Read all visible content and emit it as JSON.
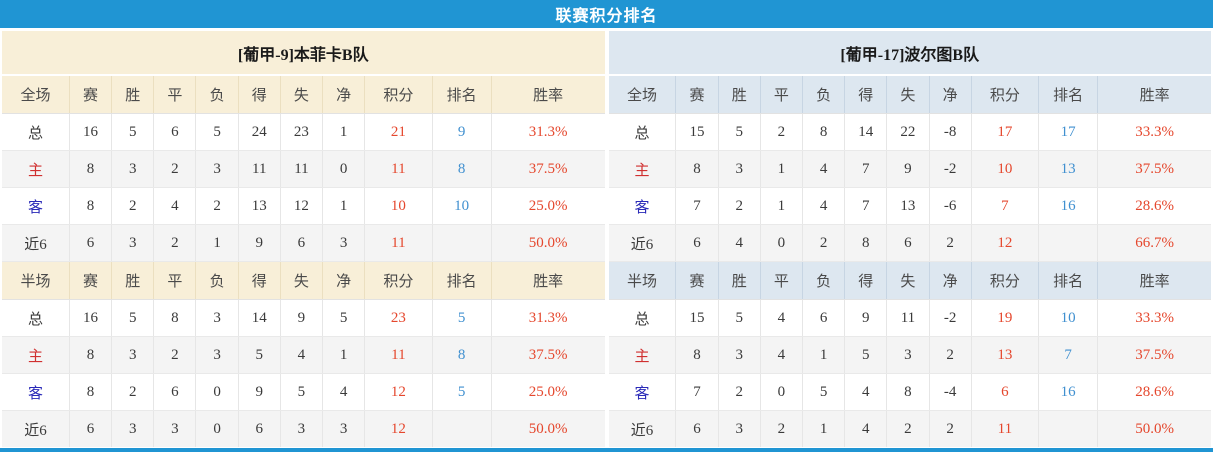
{
  "title": "联赛积分排名",
  "columns": [
    "赛",
    "胜",
    "平",
    "负",
    "得",
    "失",
    "净",
    "积分",
    "排名",
    "胜率"
  ],
  "sections": [
    {
      "key": "full",
      "label": "全场"
    },
    {
      "key": "half",
      "label": "半场"
    }
  ],
  "colors": {
    "title_bar_blue": "#2095d3",
    "left_header_cream": "#f8efd8",
    "right_header_bluegray": "#dde7f0",
    "points_red": "#e5472d",
    "rank_blue": "#4090d0",
    "home_label_red": "#d03030",
    "away_label_blue": "#2a2ab8",
    "stripe_gray": "#f4f4f4"
  },
  "teams": [
    {
      "name": "[葡甲-9]本菲卡B队",
      "theme": "cream",
      "full": [
        {
          "label": "总",
          "stats": [
            "16",
            "5",
            "6",
            "5",
            "24",
            "23",
            "1"
          ],
          "points": "21",
          "rank": "9",
          "win_rate": "31.3%"
        },
        {
          "label": "主",
          "stats": [
            "8",
            "3",
            "2",
            "3",
            "11",
            "11",
            "0"
          ],
          "points": "11",
          "rank": "8",
          "win_rate": "37.5%"
        },
        {
          "label": "客",
          "stats": [
            "8",
            "2",
            "4",
            "2",
            "13",
            "12",
            "1"
          ],
          "points": "10",
          "rank": "10",
          "win_rate": "25.0%"
        },
        {
          "label": "近6",
          "stats": [
            "6",
            "3",
            "2",
            "1",
            "9",
            "6",
            "3"
          ],
          "points": "11",
          "rank": "",
          "win_rate": "50.0%"
        }
      ],
      "half": [
        {
          "label": "总",
          "stats": [
            "16",
            "5",
            "8",
            "3",
            "14",
            "9",
            "5"
          ],
          "points": "23",
          "rank": "5",
          "win_rate": "31.3%"
        },
        {
          "label": "主",
          "stats": [
            "8",
            "3",
            "2",
            "3",
            "5",
            "4",
            "1"
          ],
          "points": "11",
          "rank": "8",
          "win_rate": "37.5%"
        },
        {
          "label": "客",
          "stats": [
            "8",
            "2",
            "6",
            "0",
            "9",
            "5",
            "4"
          ],
          "points": "12",
          "rank": "5",
          "win_rate": "25.0%"
        },
        {
          "label": "近6",
          "stats": [
            "6",
            "3",
            "3",
            "0",
            "6",
            "3",
            "3"
          ],
          "points": "12",
          "rank": "",
          "win_rate": "50.0%"
        }
      ]
    },
    {
      "name": "[葡甲-17]波尔图B队",
      "theme": "blue",
      "full": [
        {
          "label": "总",
          "stats": [
            "15",
            "5",
            "2",
            "8",
            "14",
            "22",
            "-8"
          ],
          "points": "17",
          "rank": "17",
          "win_rate": "33.3%"
        },
        {
          "label": "主",
          "stats": [
            "8",
            "3",
            "1",
            "4",
            "7",
            "9",
            "-2"
          ],
          "points": "10",
          "rank": "13",
          "win_rate": "37.5%"
        },
        {
          "label": "客",
          "stats": [
            "7",
            "2",
            "1",
            "4",
            "7",
            "13",
            "-6"
          ],
          "points": "7",
          "rank": "16",
          "win_rate": "28.6%"
        },
        {
          "label": "近6",
          "stats": [
            "6",
            "4",
            "0",
            "2",
            "8",
            "6",
            "2"
          ],
          "points": "12",
          "rank": "",
          "win_rate": "66.7%"
        }
      ],
      "half": [
        {
          "label": "总",
          "stats": [
            "15",
            "5",
            "4",
            "6",
            "9",
            "11",
            "-2"
          ],
          "points": "19",
          "rank": "10",
          "win_rate": "33.3%"
        },
        {
          "label": "主",
          "stats": [
            "8",
            "3",
            "4",
            "1",
            "5",
            "3",
            "2"
          ],
          "points": "13",
          "rank": "7",
          "win_rate": "37.5%"
        },
        {
          "label": "客",
          "stats": [
            "7",
            "2",
            "0",
            "5",
            "4",
            "8",
            "-4"
          ],
          "points": "6",
          "rank": "16",
          "win_rate": "28.6%"
        },
        {
          "label": "近6",
          "stats": [
            "6",
            "3",
            "2",
            "1",
            "4",
            "2",
            "2"
          ],
          "points": "11",
          "rank": "",
          "win_rate": "50.0%"
        }
      ]
    }
  ]
}
